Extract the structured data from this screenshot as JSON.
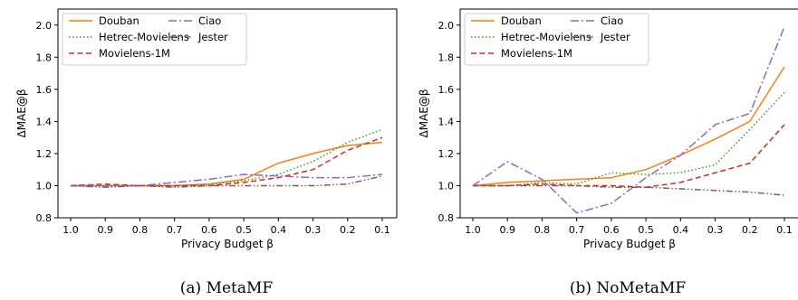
{
  "chart_data": [
    {
      "type": "line",
      "caption": "(a) MetaMF",
      "xlabel": "Privacy Budget β",
      "ylabel": "ΔMAE@β",
      "categories": [
        "1.0",
        "0.9",
        "0.8",
        "0.7",
        "0.6",
        "0.5",
        "0.4",
        "0.3",
        "0.2",
        "0.1"
      ],
      "yticks": [
        "0.8",
        "1.0",
        "1.2",
        "1.4",
        "1.6",
        "1.8",
        "2.0"
      ],
      "ylim": [
        0.8,
        2.1
      ],
      "grid": false,
      "legend_position": "top-left",
      "series": [
        {
          "name": "Douban",
          "color": "#ff7f0e",
          "dash": "solid",
          "values": [
            1.0,
            1.0,
            1.0,
            1.0,
            1.01,
            1.04,
            1.14,
            1.2,
            1.25,
            1.27
          ]
        },
        {
          "name": "Hetrec-Movielens",
          "color": "#2ca02c",
          "dash": "dotted",
          "values": [
            1.0,
            1.0,
            1.0,
            1.0,
            1.01,
            1.03,
            1.07,
            1.15,
            1.27,
            1.35
          ]
        },
        {
          "name": "Movielens-1M",
          "color": "#d62728",
          "dash": "dashed",
          "values": [
            1.0,
            1.01,
            1.0,
            1.0,
            1.0,
            1.02,
            1.05,
            1.1,
            1.22,
            1.3
          ]
        },
        {
          "name": "Ciao",
          "color": "#9467bd",
          "dash": "dashdot",
          "values": [
            1.0,
            1.0,
            1.0,
            1.02,
            1.04,
            1.07,
            1.06,
            1.05,
            1.05,
            1.07
          ]
        },
        {
          "name": "Jester",
          "color": "#8c564b",
          "dash": "dashdotdot",
          "values": [
            1.0,
            0.99,
            1.0,
            0.99,
            1.0,
            1.0,
            1.0,
            1.0,
            1.01,
            1.06
          ]
        }
      ]
    },
    {
      "type": "line",
      "caption": "(b) NoMetaMF",
      "xlabel": "Privacy Budget β",
      "ylabel": "ΔMAE@β",
      "categories": [
        "1.0",
        "0.9",
        "0.8",
        "0.7",
        "0.6",
        "0.5",
        "0.4",
        "0.3",
        "0.2",
        "0.1"
      ],
      "yticks": [
        "0.8",
        "1.0",
        "1.2",
        "1.4",
        "1.6",
        "1.8",
        "2.0"
      ],
      "ylim": [
        0.8,
        2.1
      ],
      "grid": false,
      "legend_position": "top-left",
      "series": [
        {
          "name": "Douban",
          "color": "#ff7f0e",
          "dash": "solid",
          "values": [
            1.0,
            1.02,
            1.03,
            1.04,
            1.05,
            1.1,
            1.19,
            1.29,
            1.4,
            1.74
          ]
        },
        {
          "name": "Hetrec-Movielens",
          "color": "#2ca02c",
          "dash": "dotted",
          "values": [
            1.0,
            1.0,
            1.02,
            1.01,
            1.08,
            1.07,
            1.08,
            1.13,
            1.35,
            1.58
          ]
        },
        {
          "name": "Movielens-1M",
          "color": "#d62728",
          "dash": "dashed",
          "values": [
            1.0,
            1.0,
            1.01,
            1.0,
            1.0,
            0.99,
            1.02,
            1.08,
            1.14,
            1.38
          ]
        },
        {
          "name": "Ciao",
          "color": "#9467bd",
          "dash": "dashdot",
          "values": [
            1.0,
            1.15,
            1.04,
            0.83,
            0.89,
            1.05,
            1.19,
            1.38,
            1.45,
            1.99
          ]
        },
        {
          "name": "Jester",
          "color": "#8c564b",
          "dash": "dashdotdot",
          "values": [
            1.0,
            1.0,
            1.0,
            1.0,
            0.99,
            0.99,
            0.98,
            0.97,
            0.96,
            0.94
          ]
        }
      ]
    }
  ]
}
